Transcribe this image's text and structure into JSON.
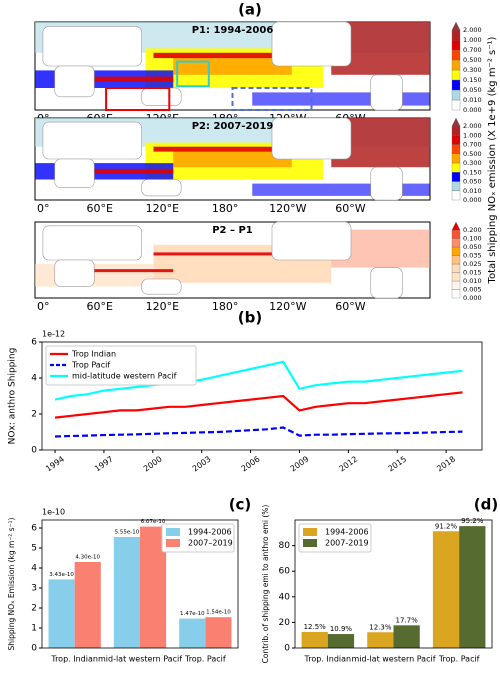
{
  "panel_labels": [
    "(a)",
    "(b)",
    "(c)",
    "(d)"
  ],
  "maps": [
    {
      "title": "P1: 1994-2006",
      "colorbar_ticks": [
        "0.000",
        "0.010",
        "0.050",
        "0.150",
        "0.300",
        "0.500",
        "0.700",
        "1.000",
        "2.000"
      ]
    },
    {
      "title": "P2: 2007-2019",
      "colorbar_ticks": [
        "0.000",
        "0.010",
        "0.050",
        "0.150",
        "0.300",
        "0.500",
        "0.700",
        "1.000",
        "2.000"
      ]
    },
    {
      "title": "P2 – P1",
      "colorbar_ticks": [
        "0.000",
        "0.005",
        "0.010",
        "0.015",
        "0.025",
        "0.035",
        "0.050",
        "0.100",
        "0.200"
      ]
    }
  ],
  "map_lon_labels": [
    "0°",
    "60°E",
    "120°E",
    "180°",
    "120°W",
    "60°W"
  ],
  "colorbar_label": "Total shipping NOₓ emission (X 1e+9 (kg m⁻² s⁻¹)",
  "chart_data": [
    {
      "type": "line",
      "ylabel": "NOx: anthro Shipping",
      "y_offset_label": "1e-12",
      "x": [
        1994,
        1995,
        1996,
        1997,
        1998,
        1999,
        2000,
        2001,
        2002,
        2003,
        2004,
        2005,
        2006,
        2007,
        2008,
        2009,
        2010,
        2011,
        2012,
        2013,
        2014,
        2015,
        2016,
        2017,
        2018,
        2019
      ],
      "xlim": [
        1993.2,
        2020.2
      ],
      "xticks": [
        1994,
        1997,
        2000,
        2003,
        2006,
        2009,
        2012,
        2015,
        2018
      ],
      "ylim": [
        0,
        6
      ],
      "yticks": [
        0,
        2,
        4,
        6
      ],
      "legend": "upper-left",
      "series": [
        {
          "name": "Trop Indian",
          "color": "#ff0000",
          "linestyle": "solid",
          "values": [
            1.8,
            1.9,
            2.0,
            2.1,
            2.2,
            2.2,
            2.3,
            2.4,
            2.4,
            2.5,
            2.6,
            2.7,
            2.8,
            2.9,
            3.0,
            2.2,
            2.4,
            2.5,
            2.6,
            2.6,
            2.7,
            2.8,
            2.9,
            3.0,
            3.1,
            3.2
          ]
        },
        {
          "name": "Trop Pacif",
          "color": "#0000ff",
          "linestyle": "dashed",
          "values": [
            0.75,
            0.78,
            0.8,
            0.83,
            0.85,
            0.87,
            0.9,
            0.93,
            0.95,
            0.98,
            1.0,
            1.05,
            1.1,
            1.15,
            1.25,
            0.8,
            0.85,
            0.85,
            0.88,
            0.9,
            0.92,
            0.93,
            0.95,
            0.97,
            1.0,
            1.02
          ]
        },
        {
          "name": "mid-latitude western Pacif",
          "color": "#00ffff",
          "linestyle": "solid",
          "values": [
            2.8,
            3.0,
            3.1,
            3.3,
            3.4,
            3.5,
            3.6,
            3.7,
            3.8,
            3.9,
            4.1,
            4.3,
            4.5,
            4.7,
            4.9,
            3.4,
            3.6,
            3.7,
            3.8,
            3.8,
            3.9,
            4.0,
            4.1,
            4.2,
            4.3,
            4.4
          ]
        }
      ]
    },
    {
      "type": "bar",
      "ylabel": "Shipping NOₓ Emission (kg m⁻² s⁻¹)",
      "y_offset_label": "1e-10",
      "categories": [
        "Trop. Indian",
        "mid-lat western Pacif",
        "Trop. Pacif"
      ],
      "ylim": [
        0,
        6.4
      ],
      "yticks": [
        0,
        1,
        2,
        3,
        4,
        5,
        6
      ],
      "legend": "upper-right",
      "series": [
        {
          "name": "1994-2006",
          "color": "#87ceeb",
          "values": [
            3.43,
            5.55,
            1.47
          ],
          "value_labels": [
            "3.43e-10",
            "5.55e-10",
            "1.47e-10"
          ]
        },
        {
          "name": "2007–2019",
          "color": "#fa8072",
          "values": [
            4.3,
            6.07,
            1.54
          ],
          "value_labels": [
            "4.30e-10",
            "6.07e-10",
            "1.54e-10"
          ]
        }
      ]
    },
    {
      "type": "bar",
      "ylabel": "Contrib. of shipping emi to anthro emi (%)",
      "categories": [
        "Trop. Indian",
        "mid-lat western Pacif",
        "Trop. Pacif"
      ],
      "ylim": [
        0,
        100
      ],
      "yticks": [
        0,
        20,
        40,
        60,
        80
      ],
      "legend": "upper-left",
      "series": [
        {
          "name": "1994-2006",
          "color": "#daa520",
          "values": [
            12.5,
            12.3,
            91.2
          ],
          "value_labels": [
            "12.5%",
            "12.3%",
            "91.2%"
          ]
        },
        {
          "name": "2007-2019",
          "color": "#556b2f",
          "values": [
            10.9,
            17.7,
            95.2
          ],
          "value_labels": [
            "10.9%",
            "17.7%",
            "95.2%"
          ]
        }
      ]
    }
  ]
}
